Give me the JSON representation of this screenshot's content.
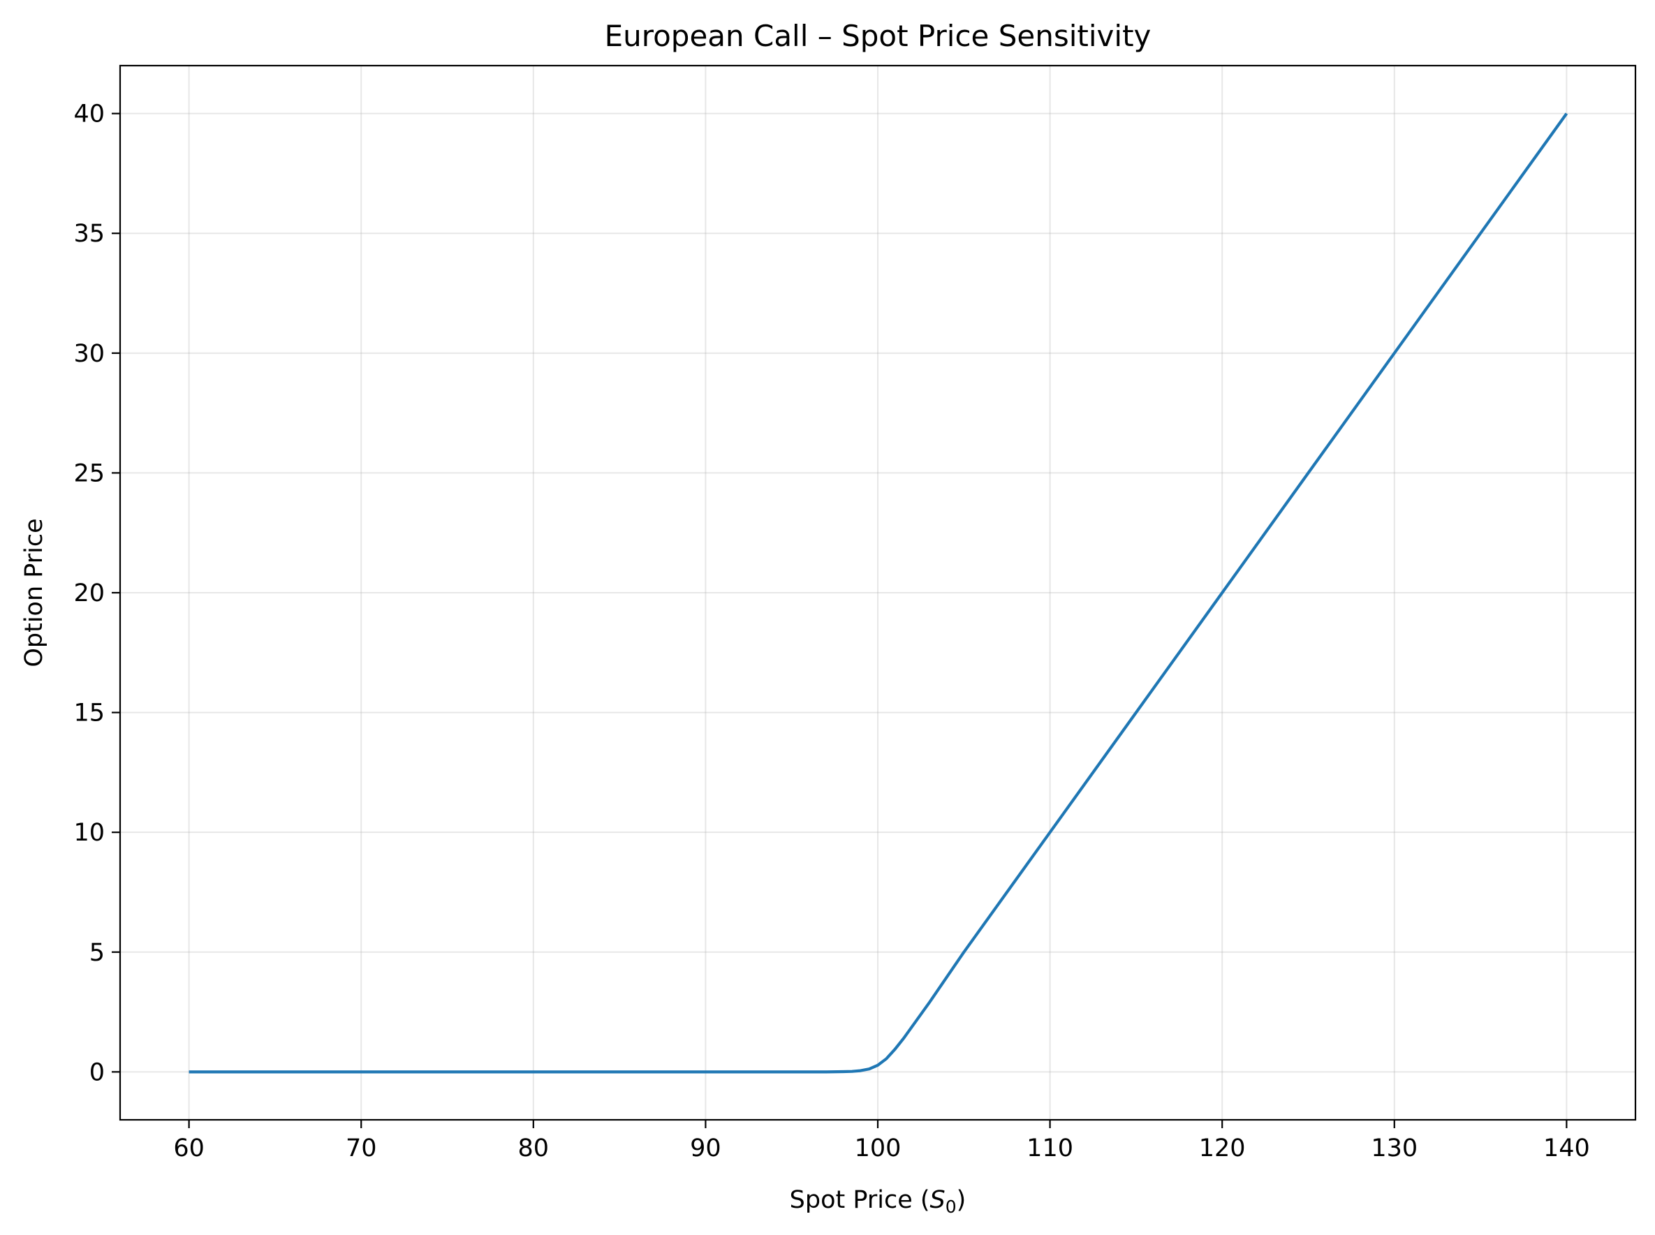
{
  "chart_data": {
    "type": "line",
    "title": "European Call – Spot Price Sensitivity",
    "xlabel_main": "Spot Price (",
    "xlabel_var": "S",
    "xlabel_sub": "0",
    "xlabel_close": ")",
    "ylabel": "Option Price",
    "xlim": [
      56,
      144
    ],
    "ylim": [
      -2,
      42
    ],
    "xticks": [
      60,
      70,
      80,
      90,
      100,
      110,
      120,
      130,
      140
    ],
    "yticks": [
      0,
      5,
      10,
      15,
      20,
      25,
      30,
      35,
      40
    ],
    "grid": true,
    "color": "#1f77b4",
    "series": [
      {
        "x": [
          60,
          70,
          80,
          90,
          95,
          97,
          98,
          98.5,
          99,
          99.5,
          100,
          100.5,
          101,
          101.5,
          102,
          103,
          105,
          110,
          115,
          120,
          125,
          130,
          135,
          140
        ],
        "y": [
          0,
          0,
          0,
          0,
          0,
          0,
          0.01,
          0.02,
          0.05,
          0.12,
          0.28,
          0.55,
          0.95,
          1.4,
          1.9,
          2.9,
          5,
          10,
          15,
          20,
          25,
          30,
          35,
          40
        ]
      }
    ]
  }
}
